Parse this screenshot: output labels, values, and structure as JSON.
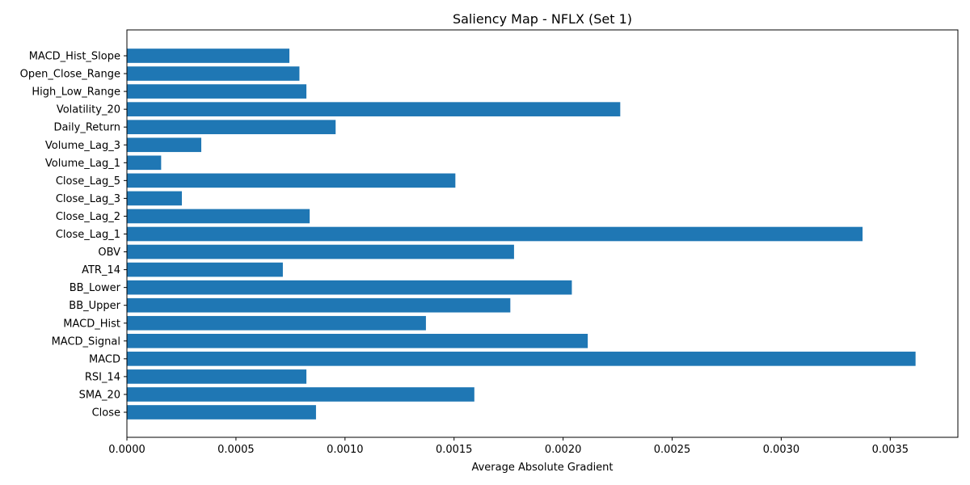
{
  "chart_data": {
    "type": "bar",
    "orientation": "horizontal",
    "title": "Saliency Map - NFLX (Set 1)",
    "xlabel": "Average Absolute Gradient",
    "ylabel": "",
    "xlim": [
      0,
      0.00381
    ],
    "x_ticks": [
      "0.0000",
      "0.0005",
      "0.0010",
      "0.0015",
      "0.0020",
      "0.0025",
      "0.0030",
      "0.0035"
    ],
    "x_tick_values": [
      0,
      0.0005,
      0.001,
      0.0015,
      0.002,
      0.0025,
      0.003,
      0.0035
    ],
    "categories": [
      "Close",
      "SMA_20",
      "RSI_14",
      "MACD",
      "MACD_Signal",
      "MACD_Hist",
      "BB_Upper",
      "BB_Lower",
      "ATR_14",
      "OBV",
      "Close_Lag_1",
      "Close_Lag_2",
      "Close_Lag_3",
      "Close_Lag_5",
      "Volume_Lag_1",
      "Volume_Lag_3",
      "Daily_Return",
      "Volatility_20",
      "High_Low_Range",
      "Open_Close_Range",
      "MACD_Hist_Slope"
    ],
    "values": [
      0.000867,
      0.001593,
      0.000823,
      0.003616,
      0.002113,
      0.001371,
      0.001758,
      0.00204,
      0.000715,
      0.001775,
      0.003373,
      0.000838,
      0.000252,
      0.001506,
      0.000157,
      0.000341,
      0.000957,
      0.002262,
      0.000823,
      0.000791,
      0.000745
    ],
    "bar_color": "#1f77b4",
    "grid": false,
    "legend": "none"
  }
}
